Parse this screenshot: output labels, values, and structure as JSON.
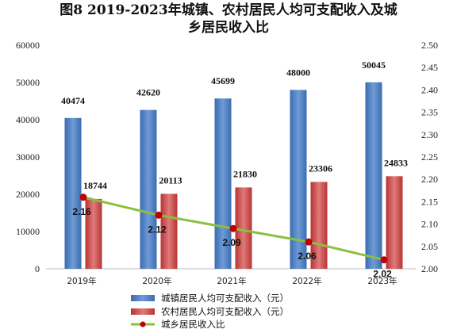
{
  "chart_data": {
    "type": "bar+line",
    "title_lines": [
      "图8 2019-2023年城镇、农村居民人均可支配收入及城",
      "乡居民收入比"
    ],
    "categories": [
      "2019年",
      "2020年",
      "2021年",
      "2022年",
      "2023年"
    ],
    "series": [
      {
        "name": "城镇居民人均可支配收入（元）",
        "type": "bar",
        "axis": "left",
        "values": [
          40474,
          42620,
          45699,
          48000,
          50045
        ],
        "color": "#4a7fc1"
      },
      {
        "name": "农村居民人均可支配收入（元）",
        "type": "bar",
        "axis": "left",
        "values": [
          18744,
          20113,
          21830,
          23306,
          24833
        ],
        "color": "#cc4a4a"
      },
      {
        "name": "城乡居民收入比",
        "type": "line",
        "axis": "right",
        "values": [
          2.16,
          2.12,
          2.09,
          2.06,
          2.02
        ],
        "color": "#8cbf3f",
        "marker_color": "#c00000"
      }
    ],
    "y_left": {
      "min": 0,
      "max": 60000,
      "ticks": [
        0,
        10000,
        20000,
        30000,
        40000,
        50000,
        60000
      ]
    },
    "y_right": {
      "min": 2.0,
      "max": 2.5,
      "ticks": [
        "2.00",
        "2.05",
        "2.10",
        "2.15",
        "2.20",
        "2.25",
        "2.30",
        "2.35",
        "2.40",
        "2.45",
        "2.50"
      ]
    },
    "legend_position": "bottom",
    "grid": false
  }
}
